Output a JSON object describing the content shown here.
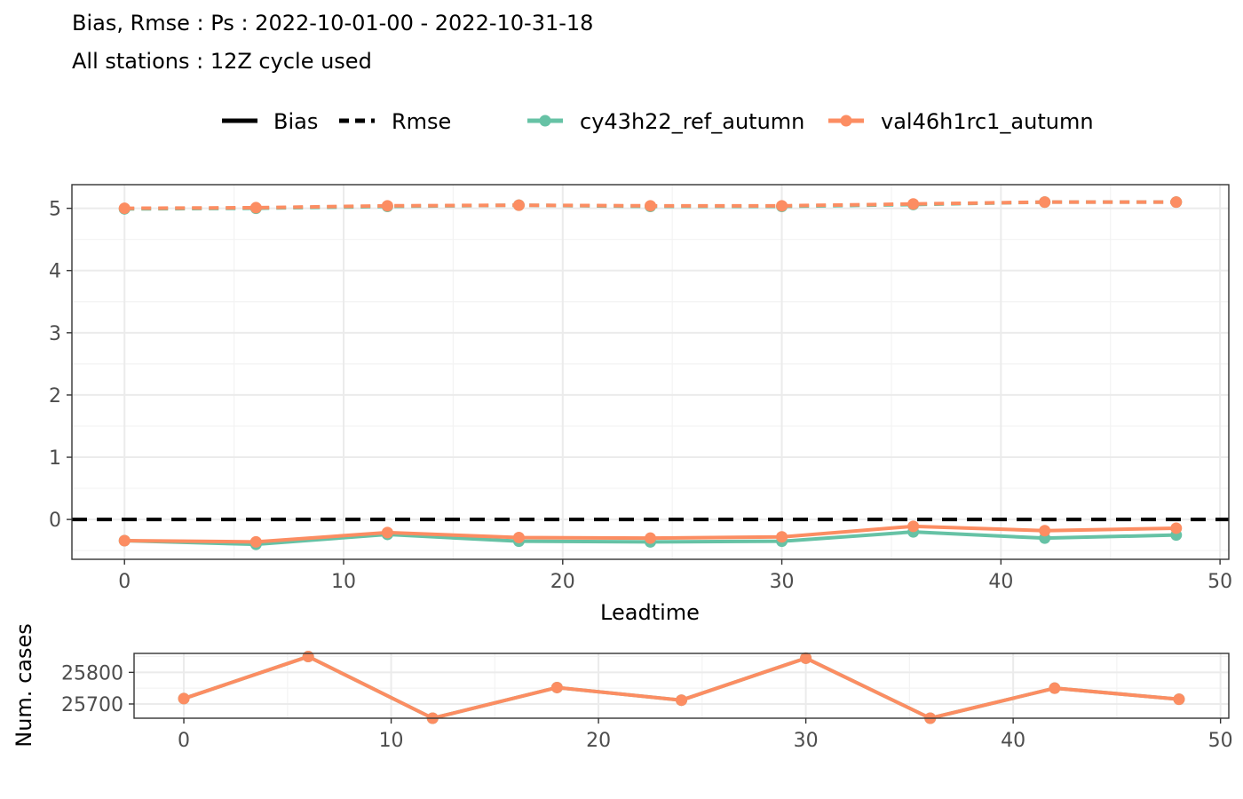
{
  "header": {
    "title_line1": "Bias, Rmse : Ps : 2022-10-01-00 - 2022-10-31-18",
    "title_line2": "All stations : 12Z cycle used"
  },
  "legend": {
    "line_types": [
      {
        "label": "Bias",
        "style": "solid"
      },
      {
        "label": "Rmse",
        "style": "dashed"
      }
    ],
    "models": [
      {
        "label": "cy43h22_ref_autumn",
        "color": "#66c2a5"
      },
      {
        "label": "val46h1rc1_autumn",
        "color": "#fc8d62"
      }
    ]
  },
  "colors": {
    "cy43h22_ref_autumn": "#66c2a5",
    "val46h1rc1_autumn": "#fc8d62",
    "zero_line": "#000000"
  },
  "chart_data": [
    {
      "type": "line",
      "xlabel": "Leadtime",
      "ylabel": "",
      "xlim": [
        -2.4,
        50.4
      ],
      "ylim": [
        -0.64,
        5.38
      ],
      "x_ticks": [
        0,
        10,
        20,
        30,
        40,
        50
      ],
      "y_ticks": [
        0,
        1,
        2,
        3,
        4,
        5
      ],
      "grid": true,
      "reference_line": {
        "y": 0,
        "style": "dashed",
        "color": "#000000"
      },
      "x": [
        0,
        6,
        12,
        18,
        24,
        30,
        36,
        42,
        48
      ],
      "series": [
        {
          "name": "cy43h22_ref_autumn",
          "score": "Bias",
          "line_style": "solid",
          "values": [
            -0.34,
            -0.4,
            -0.24,
            -0.35,
            -0.36,
            -0.35,
            -0.2,
            -0.3,
            -0.25
          ]
        },
        {
          "name": "val46h1rc1_autumn",
          "score": "Bias",
          "line_style": "solid",
          "values": [
            -0.34,
            -0.36,
            -0.21,
            -0.29,
            -0.3,
            -0.28,
            -0.11,
            -0.18,
            -0.14
          ]
        },
        {
          "name": "cy43h22_ref_autumn",
          "score": "Rmse",
          "line_style": "dashed",
          "values": [
            4.99,
            5.0,
            5.03,
            5.05,
            5.03,
            5.03,
            5.06,
            5.1,
            5.1
          ]
        },
        {
          "name": "val46h1rc1_autumn",
          "score": "Rmse",
          "line_style": "dashed",
          "values": [
            5.0,
            5.01,
            5.04,
            5.05,
            5.04,
            5.04,
            5.07,
            5.1,
            5.1
          ]
        }
      ]
    },
    {
      "type": "line",
      "xlabel": "",
      "ylabel": "Num. cases",
      "xlim": [
        -2.4,
        50.4
      ],
      "ylim": [
        25655,
        25860
      ],
      "x_ticks": [
        0,
        10,
        20,
        30,
        40,
        50
      ],
      "y_ticks": [
        25700,
        25800
      ],
      "grid": true,
      "x": [
        0,
        6,
        12,
        18,
        24,
        30,
        36,
        42,
        48
      ],
      "series": [
        {
          "name": "cy43h22_ref_autumn",
          "values": [
            25717,
            25850,
            25655,
            25752,
            25712,
            25845,
            25655,
            25750,
            25715
          ]
        },
        {
          "name": "val46h1rc1_autumn",
          "values": [
            25717,
            25850,
            25655,
            25752,
            25712,
            25845,
            25655,
            25750,
            25715
          ]
        }
      ]
    }
  ]
}
